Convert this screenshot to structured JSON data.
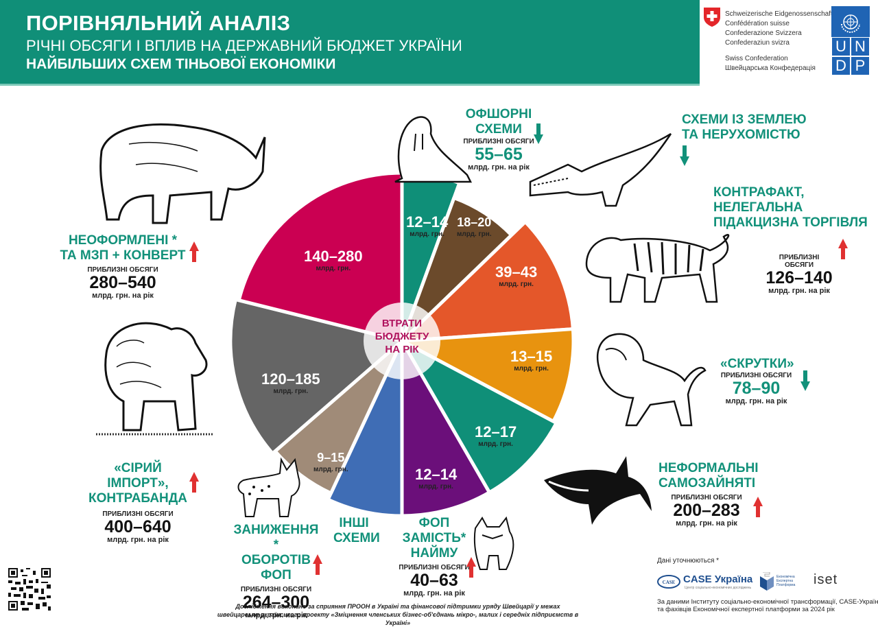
{
  "header": {
    "title": "ПОРІВНЯЛЬНИЙ АНАЛІЗ",
    "subtitle": "РІЧНІ ОБСЯГИ І ВПЛИВ НА ДЕРЖАВНИЙ БЮДЖЕТ УКРАЇНИ",
    "subtitle2": "НАЙБІЛЬШИХ СХЕМ ТІНЬОВОЇ ЕКОНОМІКИ",
    "color": "#108f78"
  },
  "logos": {
    "swiss_lines": [
      "Schweizerische Eidgenossenschaft",
      "Confédération suisse",
      "Confederazione Svizzera",
      "Confederaziun svizra",
      "",
      "Swiss Confederation",
      "Швейцарська Конфедерація"
    ],
    "undp_letters": [
      "U",
      "N",
      "D",
      "P"
    ]
  },
  "center_label": [
    "ВТРАТИ",
    "БЮДЖЕТУ",
    "НА РІК"
  ],
  "common": {
    "approx": "ПРИБЛИЗНІ ОБСЯГИ",
    "unit_year": "млрд. грн. на рік",
    "unit_short": "млрд. грн."
  },
  "schemes": [
    {
      "id": "offshore",
      "title": [
        "ОФШОРНІ СХЕМИ"
      ],
      "volume": "55–65",
      "trend": "down",
      "animal": "walrus"
    },
    {
      "id": "land",
      "title": [
        "СХЕМИ ІЗ ЗЕМЛЕЮ",
        "ТА НЕРУХОМІСТЮ"
      ],
      "volume": "",
      "trend": "down",
      "animal": "crocodile"
    },
    {
      "id": "counterfeit",
      "title": [
        "КОНТРАФАКТ,",
        "НЕЛЕГАЛЬНА",
        "ПІДАКЦИЗНА ТОРГІВЛЯ"
      ],
      "volume": "126–140",
      "trend": "up",
      "animal": "tiger"
    },
    {
      "id": "twists",
      "title": [
        "«СКРУТКИ»"
      ],
      "volume": "78–90",
      "trend": "down",
      "animal": "lion"
    },
    {
      "id": "self_employed",
      "title": [
        "НЕФОРМАЛЬНІ",
        "САМОЗАЙНЯТІ"
      ],
      "volume": "200–283",
      "trend": "up",
      "animal": "shark"
    },
    {
      "id": "fop_hiring",
      "title": [
        "ФОП ЗАМІСТЬ*",
        "НАЙМУ"
      ],
      "volume": "40–63",
      "trend": "up",
      "animal": "wolf"
    },
    {
      "id": "other",
      "title": [
        "ІНШІ",
        "СХЕМИ"
      ],
      "volume": "",
      "trend": "",
      "animal": ""
    },
    {
      "id": "fop_underreport",
      "title": [
        "ЗАНИЖЕННЯ *",
        "ОБОРОТІВ ФОП"
      ],
      "volume": "264–300",
      "trend": "up",
      "animal": "lynx"
    },
    {
      "id": "grey_import",
      "title": [
        "«СІРИЙ ІМПОРТ»,",
        "КОНТРАБАНДА"
      ],
      "volume": "400–640",
      "trend": "up",
      "animal": "bear"
    },
    {
      "id": "unregistered",
      "title": [
        "НЕОФОРМЛЕНІ *",
        "ТА МЗП + КОНВЕРТ"
      ],
      "volume": "280–540",
      "trend": "up",
      "animal": "rhino"
    }
  ],
  "trend_colors": {
    "up": "#e03131",
    "down": "#12917a"
  },
  "chart_data": {
    "type": "pie",
    "subtype": "polar-area (rose) chart",
    "title": "ВТРАТИ БЮДЖЕТУ НА РІК",
    "unit": "млрд. грн.",
    "center": [
      586,
      497
    ],
    "categories": [
      "Офшорні схеми",
      "Схеми із землею та нерухомістю",
      "Контрафакт, нелегальна підакцизна торгівля",
      "«Скрутки»",
      "Неформальні самозайняті",
      "ФОП замість найму",
      "Інші схеми",
      "Заниження оборотів ФОП",
      "«Сірий імпорт», контрабанда",
      "Неоформлені та МЗП + конверт"
    ],
    "slices": [
      {
        "label": "12–14",
        "min": 12,
        "max": 14,
        "color": "#0f8f78",
        "start": 0,
        "end": 20,
        "r": 245
      },
      {
        "label": "18–20",
        "min": 18,
        "max": 20,
        "color": "#6b4a2b",
        "start": 20,
        "end": 46,
        "r": 222
      },
      {
        "label": "39–43",
        "min": 39,
        "max": 43,
        "color": "#e4572a",
        "start": 46,
        "end": 86,
        "r": 250
      },
      {
        "label": "13–15",
        "min": 13,
        "max": 15,
        "color": "#e8930f",
        "start": 86,
        "end": 118,
        "r": 250
      },
      {
        "label": "12–17",
        "min": 12,
        "max": 17,
        "color": "#0f8f78",
        "start": 118,
        "end": 150,
        "r": 255
      },
      {
        "label": "12–14",
        "min": 12,
        "max": 14,
        "color": "#6b0f7a",
        "start": 150,
        "end": 180,
        "r": 255
      },
      {
        "label": "",
        "min": null,
        "max": null,
        "color": "#3f6db5",
        "start": 180,
        "end": 205,
        "r": 255
      },
      {
        "label": "9–15",
        "min": 9,
        "max": 15,
        "color": "#a08b78",
        "start": 205,
        "end": 229,
        "r": 245
      },
      {
        "label": "120–185",
        "min": 120,
        "max": 185,
        "color": "#656565",
        "start": 229,
        "end": 284,
        "r": 250
      },
      {
        "label": "140–280",
        "min": 140,
        "max": 280,
        "color": "#cb0052",
        "start": 284,
        "end": 360,
        "r": 245
      }
    ],
    "annual_volumes": [
      {
        "scheme": "Офшорні схеми",
        "range": "55–65",
        "trend": "down"
      },
      {
        "scheme": "Контрафакт, нелегальна підакцизна торгівля",
        "range": "126–140",
        "trend": "up"
      },
      {
        "scheme": "«Скрутки»",
        "range": "78–90",
        "trend": "down"
      },
      {
        "scheme": "Неформальні самозайняті",
        "range": "200–283",
        "trend": "up"
      },
      {
        "scheme": "ФОП замість найму",
        "range": "40–63",
        "trend": "up"
      },
      {
        "scheme": "Заниження оборотів ФОП",
        "range": "264–300",
        "trend": "up"
      },
      {
        "scheme": "«Сірий імпорт», контрабанда",
        "range": "400–640",
        "trend": "up"
      },
      {
        "scheme": "Неоформлені та МЗП + конверт",
        "range": "280–540",
        "trend": "up"
      }
    ]
  },
  "credits": {
    "note": "Дані уточнюються *",
    "case_name": "CASE Україна",
    "case_sub": "Центр соціально-економічних досліджень",
    "eep": [
      "Економічна",
      "Експертна",
      "Платформа"
    ],
    "iset": "iset",
    "source": [
      "За даними Інституту соціально-економічної трансформації, CASE-Україна",
      "та фахівців Економічної експертної платформи за 2024 рік"
    ]
  },
  "footer": [
    "Дослідження виконане за сприяння ПРООН в Україні та фінансової підтримки уряду Швейцарії у межах",
    "швейцарсько-українського проекту «Зміцнення членських бізнес-об'єднань мікро-, малих і середніх підприємств в Україні»"
  ]
}
